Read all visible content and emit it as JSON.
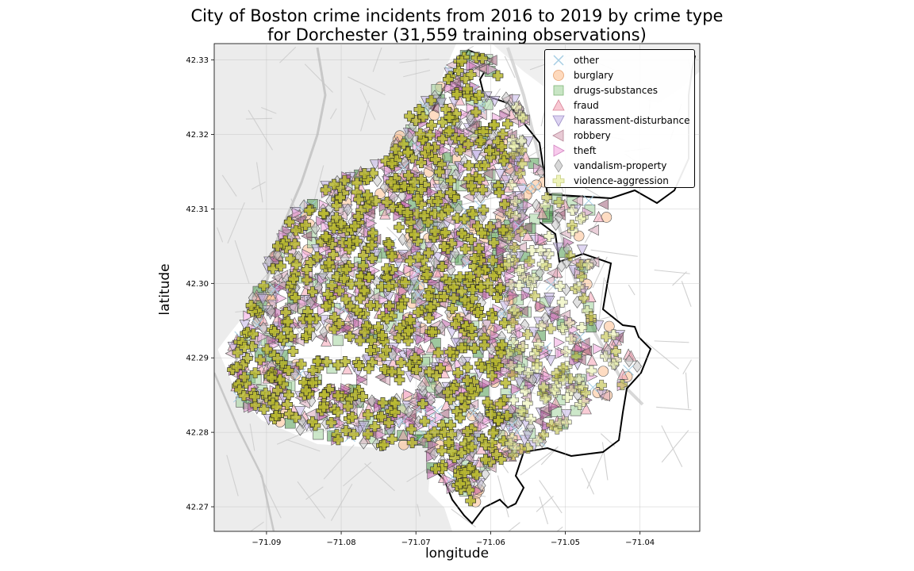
{
  "chart_data": {
    "type": "scatter",
    "title": "City of Boston crime incidents from 2016 to 2019 by crime type",
    "subtitle": "for Dorchester (31,559 training observations)",
    "xlabel": "longitude",
    "ylabel": "latitude",
    "xlim": [
      -71.097,
      -71.032
    ],
    "ylim": [
      42.2667,
      42.3322
    ],
    "xticks": [
      "−71.09",
      "−71.08",
      "−71.07",
      "−71.06",
      "−71.05",
      "−71.04"
    ],
    "xtick_values": [
      -71.09,
      -71.08,
      -71.07,
      -71.06,
      -71.05,
      -71.04
    ],
    "yticks": [
      "42.27",
      "42.28",
      "42.29",
      "42.30",
      "42.31",
      "42.32",
      "42.33"
    ],
    "ytick_values": [
      42.27,
      42.28,
      42.29,
      42.3,
      42.31,
      42.32,
      42.33
    ],
    "grid": true,
    "legend_position": "top-right",
    "background": "street map basemap",
    "series": [
      {
        "name": "other",
        "marker": "x",
        "color": "#a6cee3"
      },
      {
        "name": "burglary",
        "marker": "circle",
        "color": "#fdbf8f"
      },
      {
        "name": "drugs-substances",
        "marker": "square",
        "color": "#a3d39c"
      },
      {
        "name": "fraud",
        "marker": "triangle-up",
        "color": "#f4a3b5"
      },
      {
        "name": "harassment-disturbance",
        "marker": "triangle-down",
        "color": "#c4b5e8"
      },
      {
        "name": "robbery",
        "marker": "triangle-left",
        "color": "#d9a7b9"
      },
      {
        "name": "theft",
        "marker": "triangle-right",
        "color": "#f3a6e0"
      },
      {
        "name": "vandalism-property",
        "marker": "diamond",
        "color": "#c8c8c8"
      },
      {
        "name": "violence-aggression",
        "marker": "plus",
        "color": "#eaf0a8"
      }
    ]
  }
}
